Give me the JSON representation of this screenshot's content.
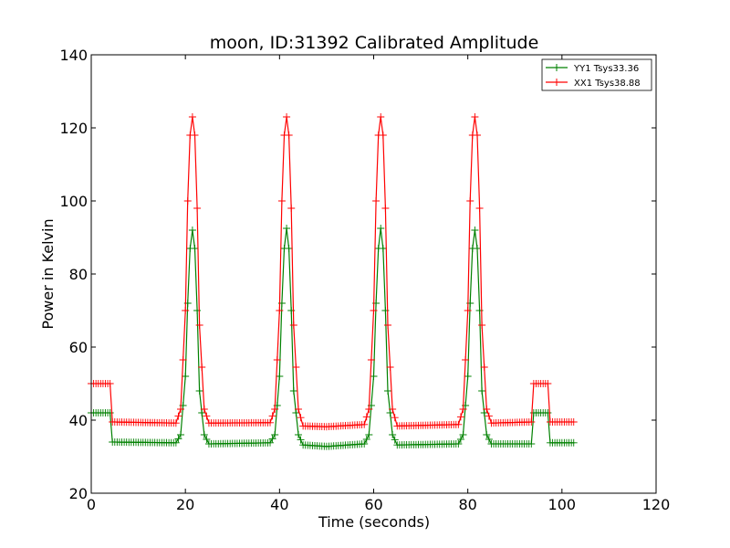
{
  "chart_data": {
    "type": "line",
    "title": "moon, ID:31392 Calibrated Amplitude",
    "xlabel": "Time (seconds)",
    "ylabel": "Power in Kelvin",
    "xlim": [
      0,
      120
    ],
    "ylim": [
      20,
      140
    ],
    "xticks": [
      0,
      20,
      40,
      60,
      80,
      100,
      120
    ],
    "yticks": [
      20,
      40,
      60,
      80,
      100,
      120,
      140
    ],
    "grid": false,
    "legend_position": "top-right",
    "marker": "+",
    "sampling_interval": 0.5,
    "x_range": [
      0,
      102.5
    ],
    "series": [
      {
        "name": "YY1 Tsys33.36",
        "color": "#008000",
        "points": [
          [
            0,
            42
          ],
          [
            4,
            42
          ],
          [
            4.5,
            34
          ],
          [
            18,
            33.8
          ],
          [
            19,
            36
          ],
          [
            20,
            52
          ],
          [
            20.5,
            72
          ],
          [
            21,
            87
          ],
          [
            21.5,
            92
          ],
          [
            22,
            87
          ],
          [
            22.5,
            70
          ],
          [
            23,
            48
          ],
          [
            24,
            36
          ],
          [
            25,
            33.5
          ],
          [
            38,
            33.8
          ],
          [
            39,
            36
          ],
          [
            40,
            52
          ],
          [
            40.5,
            72
          ],
          [
            41,
            87
          ],
          [
            41.5,
            92.5
          ],
          [
            42,
            87
          ],
          [
            42.5,
            70
          ],
          [
            43,
            48
          ],
          [
            44,
            36
          ],
          [
            45,
            33.2
          ],
          [
            50,
            32.8
          ],
          [
            58,
            33.5
          ],
          [
            59,
            36
          ],
          [
            60,
            52
          ],
          [
            60.5,
            72
          ],
          [
            61,
            87
          ],
          [
            61.5,
            92.5
          ],
          [
            62,
            87
          ],
          [
            62.5,
            70
          ],
          [
            63,
            48
          ],
          [
            64,
            36
          ],
          [
            65,
            33.2
          ],
          [
            78,
            33.5
          ],
          [
            79,
            36
          ],
          [
            80,
            52
          ],
          [
            80.5,
            72
          ],
          [
            81,
            87
          ],
          [
            81.5,
            92
          ],
          [
            82,
            87
          ],
          [
            82.5,
            70
          ],
          [
            83,
            48
          ],
          [
            84,
            36
          ],
          [
            85,
            33.5
          ],
          [
            93.5,
            33.5
          ],
          [
            94,
            42
          ],
          [
            97,
            42
          ],
          [
            97.5,
            33.8
          ],
          [
            102.5,
            33.8
          ]
        ]
      },
      {
        "name": "XX1 Tsys38.88",
        "color": "#ff0000",
        "points": [
          [
            0,
            50
          ],
          [
            4,
            50
          ],
          [
            4.5,
            39.5
          ],
          [
            18,
            39.2
          ],
          [
            19,
            43
          ],
          [
            20,
            70
          ],
          [
            20.5,
            100
          ],
          [
            21,
            118
          ],
          [
            21.5,
            123
          ],
          [
            22,
            118
          ],
          [
            22.5,
            98
          ],
          [
            23,
            66
          ],
          [
            24,
            43
          ],
          [
            25,
            39.2
          ],
          [
            38,
            39.3
          ],
          [
            39,
            43
          ],
          [
            40,
            70
          ],
          [
            40.5,
            100
          ],
          [
            41,
            118
          ],
          [
            41.5,
            123
          ],
          [
            42,
            118
          ],
          [
            42.5,
            98
          ],
          [
            43,
            66
          ],
          [
            44,
            43
          ],
          [
            45,
            38.4
          ],
          [
            50,
            38.2
          ],
          [
            58,
            38.8
          ],
          [
            59,
            43
          ],
          [
            60,
            70
          ],
          [
            60.5,
            100
          ],
          [
            61,
            118
          ],
          [
            61.5,
            123
          ],
          [
            62,
            118
          ],
          [
            62.5,
            98
          ],
          [
            63,
            66
          ],
          [
            64,
            43
          ],
          [
            65,
            38.4
          ],
          [
            78,
            38.8
          ],
          [
            79,
            43
          ],
          [
            80,
            70
          ],
          [
            80.5,
            100
          ],
          [
            81,
            118
          ],
          [
            81.5,
            123
          ],
          [
            82,
            118
          ],
          [
            82.5,
            98
          ],
          [
            83,
            66
          ],
          [
            84,
            43
          ],
          [
            85,
            39.2
          ],
          [
            93.5,
            39.5
          ],
          [
            94,
            50
          ],
          [
            97,
            50
          ],
          [
            97.5,
            39.5
          ],
          [
            102.5,
            39.5
          ]
        ]
      }
    ]
  }
}
